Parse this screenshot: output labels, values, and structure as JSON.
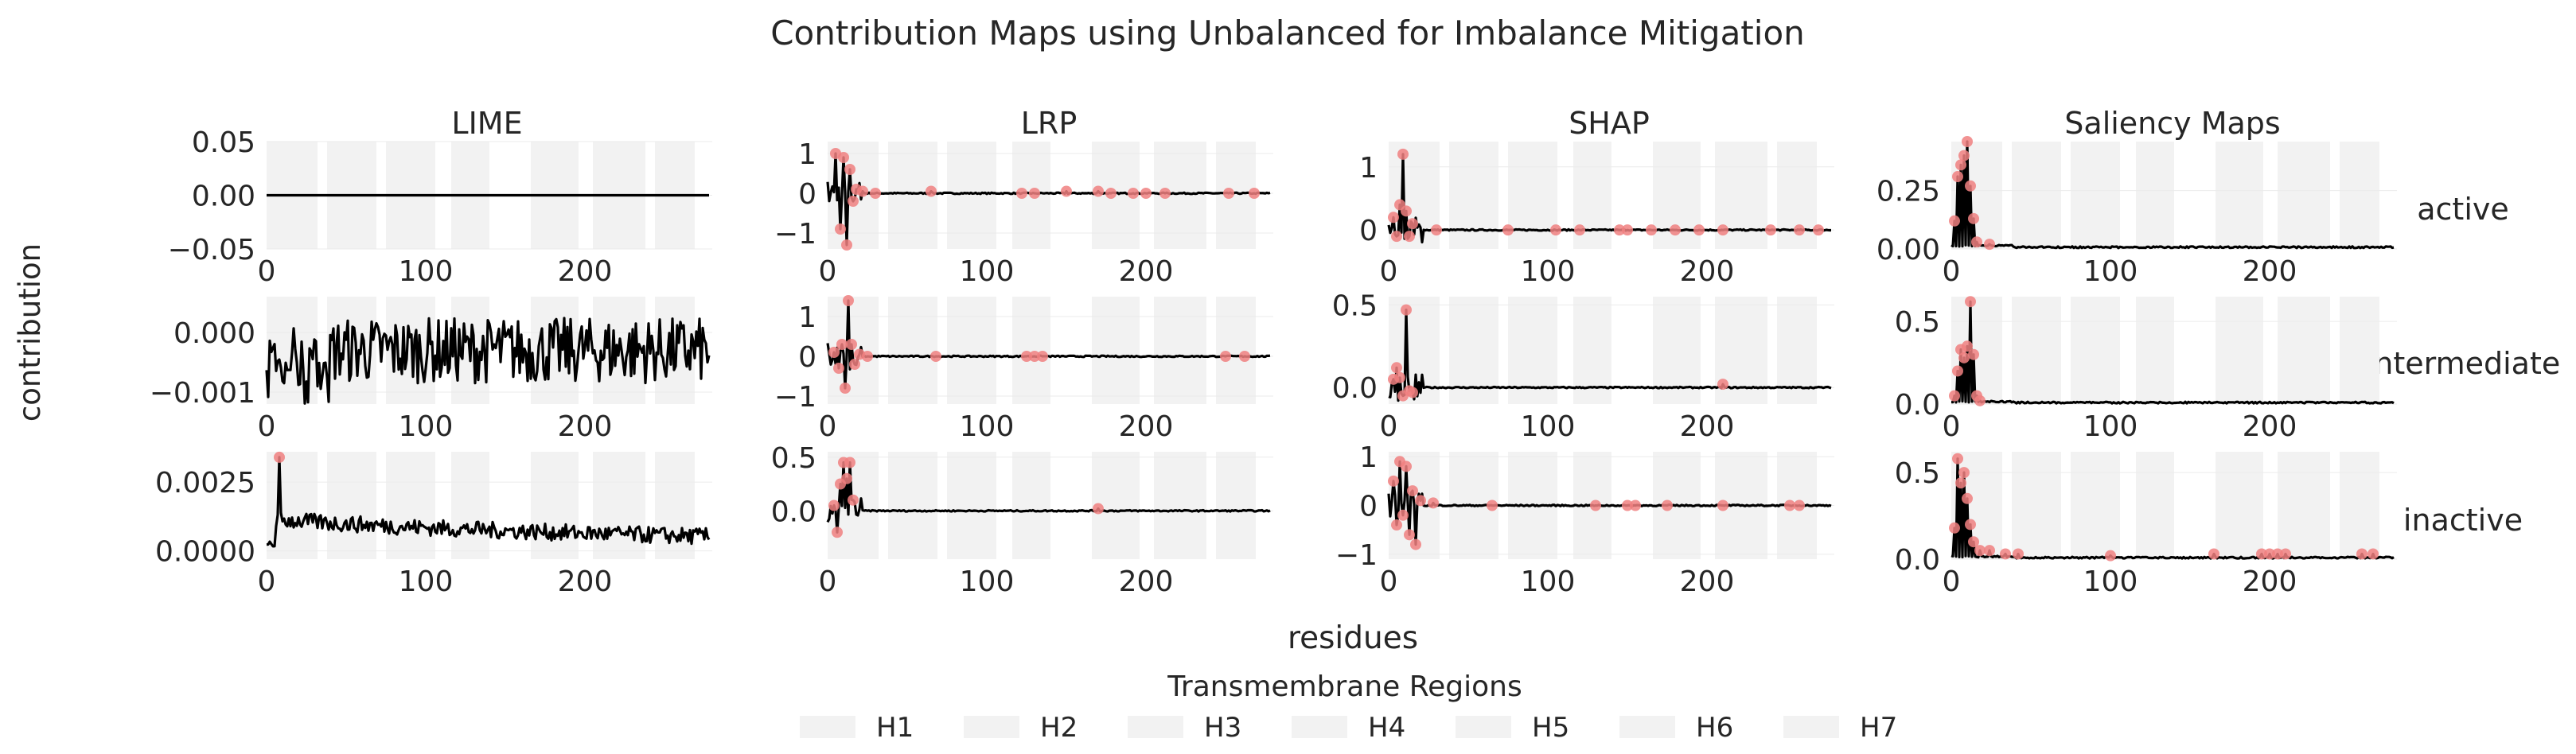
{
  "chart_data": {
    "type": "line",
    "title": "Contribution Maps using Unbalanced for Imbalance Mitigation",
    "xlabel": "residues",
    "ylabel": "contribution",
    "methods": [
      "LIME",
      "LRP",
      "SHAP",
      "Saliency Maps"
    ],
    "states": [
      "active",
      "intermediate",
      "inactive"
    ],
    "x_range": [
      0,
      280
    ],
    "x_ticks": [
      0,
      100,
      200
    ],
    "legend_title": "Transmembrane Regions",
    "regions": [
      {
        "name": "H1",
        "start": 0,
        "end": 32,
        "color": "#f2f2f2"
      },
      {
        "name": "H2",
        "start": 38,
        "end": 69,
        "color": "#f2f2f2"
      },
      {
        "name": "H3",
        "start": 75,
        "end": 106,
        "color": "#f2f2f2"
      },
      {
        "name": "H4",
        "start": 116,
        "end": 140,
        "color": "#f2f2f2"
      },
      {
        "name": "H5",
        "start": 166,
        "end": 196,
        "color": "#f2f2f2"
      },
      {
        "name": "H6",
        "start": 205,
        "end": 238,
        "color": "#f2f2f2"
      },
      {
        "name": "H7",
        "start": 244,
        "end": 269,
        "color": "#f2f2f2"
      }
    ],
    "line_color": "#000000",
    "highlight_color": "#f08080",
    "panels": [
      {
        "method": "LIME",
        "state": "active",
        "ylim": [
          -0.05,
          0.05
        ],
        "yticks": [
          "0.05",
          "0.00",
          "−0.05"
        ],
        "ytick_values": [
          0.05,
          0.0,
          -0.05
        ],
        "series": "flat",
        "peaks": []
      },
      {
        "method": "LRP",
        "state": "active",
        "ylim": [
          -1.4,
          1.3
        ],
        "yticks": [
          "1",
          "0",
          "−1"
        ],
        "ytick_values": [
          1,
          0,
          -1
        ],
        "series": "spiky",
        "peaks": [
          [
            5,
            1.0
          ],
          [
            8,
            -0.9
          ],
          [
            10,
            0.9
          ],
          [
            12,
            -1.3
          ],
          [
            14,
            0.6
          ],
          [
            16,
            -0.2
          ],
          [
            18,
            0.1
          ],
          [
            22,
            0.05
          ],
          [
            30,
            0.0
          ],
          [
            65,
            0.05
          ],
          [
            122,
            0.0
          ],
          [
            130,
            0.0
          ],
          [
            150,
            0.05
          ],
          [
            170,
            0.05
          ],
          [
            178,
            0.0
          ],
          [
            192,
            0.0
          ],
          [
            200,
            0.0
          ],
          [
            212,
            0.0
          ],
          [
            252,
            0.0
          ],
          [
            268,
            0.0
          ]
        ]
      },
      {
        "method": "SHAP",
        "state": "active",
        "ylim": [
          -0.3,
          1.4
        ],
        "yticks": [
          "1",
          "0"
        ],
        "ytick_values": [
          1,
          0
        ],
        "series": "spiky",
        "peaks": [
          [
            3,
            0.2
          ],
          [
            5,
            -0.1
          ],
          [
            7,
            0.4
          ],
          [
            9,
            1.2
          ],
          [
            11,
            0.3
          ],
          [
            13,
            -0.1
          ],
          [
            15,
            0.1
          ],
          [
            30,
            0.0
          ],
          [
            75,
            0.0
          ],
          [
            105,
            0.0
          ],
          [
            120,
            0.0
          ],
          [
            145,
            0.0
          ],
          [
            150,
            0.0
          ],
          [
            165,
            0.0
          ],
          [
            180,
            0.0
          ],
          [
            195,
            0.0
          ],
          [
            210,
            0.0
          ],
          [
            240,
            0.0
          ],
          [
            258,
            0.0
          ],
          [
            270,
            0.0
          ]
        ]
      },
      {
        "method": "Saliency Maps",
        "state": "active",
        "ylim": [
          0,
          0.46
        ],
        "yticks": [
          "0.25",
          "0.00"
        ],
        "ytick_values": [
          0.25,
          0.0
        ],
        "series": "positive",
        "peaks": [
          [
            2,
            0.12
          ],
          [
            4,
            0.31
          ],
          [
            6,
            0.36
          ],
          [
            8,
            0.4
          ],
          [
            10,
            0.46
          ],
          [
            12,
            0.27
          ],
          [
            14,
            0.13
          ],
          [
            16,
            0.03
          ],
          [
            24,
            0.02
          ]
        ]
      },
      {
        "method": "LIME",
        "state": "intermediate",
        "ylim": [
          -0.0012,
          0.0006
        ],
        "yticks": [
          "0.000",
          "−0.001"
        ],
        "ytick_values": [
          0.0,
          -0.001
        ],
        "series": "noise",
        "peaks": []
      },
      {
        "method": "LRP",
        "state": "intermediate",
        "ylim": [
          -1.2,
          1.5
        ],
        "yticks": [
          "1",
          "0",
          "−1"
        ],
        "ytick_values": [
          1,
          0,
          -1
        ],
        "series": "spiky",
        "peaks": [
          [
            4,
            0.1
          ],
          [
            7,
            -0.3
          ],
          [
            9,
            0.3
          ],
          [
            11,
            -0.8
          ],
          [
            13,
            1.4
          ],
          [
            15,
            0.3
          ],
          [
            17,
            -0.2
          ],
          [
            20,
            0.05
          ],
          [
            25,
            0.0
          ],
          [
            68,
            0.0
          ],
          [
            125,
            0.0
          ],
          [
            130,
            0.0
          ],
          [
            135,
            0.0
          ],
          [
            250,
            0.0
          ],
          [
            262,
            0.0
          ]
        ]
      },
      {
        "method": "SHAP",
        "state": "intermediate",
        "ylim": [
          -0.1,
          0.55
        ],
        "yticks": [
          "0.5",
          "0.0"
        ],
        "ytick_values": [
          0.5,
          0.0
        ],
        "series": "spiky",
        "peaks": [
          [
            3,
            0.05
          ],
          [
            5,
            0.12
          ],
          [
            7,
            0.06
          ],
          [
            9,
            -0.05
          ],
          [
            11,
            0.47
          ],
          [
            13,
            -0.02
          ],
          [
            15,
            -0.03
          ],
          [
            210,
            0.02
          ]
        ]
      },
      {
        "method": "Saliency Maps",
        "state": "intermediate",
        "ylim": [
          0,
          0.65
        ],
        "yticks": [
          "0.5",
          "0.0"
        ],
        "ytick_values": [
          0.5,
          0.0
        ],
        "series": "positive",
        "peaks": [
          [
            2,
            0.05
          ],
          [
            4,
            0.2
          ],
          [
            6,
            0.33
          ],
          [
            8,
            0.28
          ],
          [
            10,
            0.35
          ],
          [
            12,
            0.62
          ],
          [
            14,
            0.3
          ],
          [
            16,
            0.05
          ],
          [
            18,
            0.02
          ]
        ]
      },
      {
        "method": "LIME",
        "state": "inactive",
        "ylim": [
          -0.0003,
          0.0036
        ],
        "yticks": [
          "0.0025",
          "0.0000"
        ],
        "ytick_values": [
          0.0025,
          0.0
        ],
        "series": "decay",
        "peaks": [
          [
            8,
            0.0034
          ]
        ]
      },
      {
        "method": "LRP",
        "state": "inactive",
        "ylim": [
          -0.45,
          0.55
        ],
        "yticks": [
          "0.5",
          "0.0"
        ],
        "ytick_values": [
          0.5,
          0.0
        ],
        "series": "spiky",
        "peaks": [
          [
            4,
            0.05
          ],
          [
            6,
            -0.2
          ],
          [
            8,
            0.25
          ],
          [
            10,
            0.45
          ],
          [
            12,
            0.3
          ],
          [
            14,
            0.45
          ],
          [
            16,
            0.1
          ],
          [
            170,
            0.02
          ]
        ]
      },
      {
        "method": "SHAP",
        "state": "inactive",
        "ylim": [
          -1.1,
          1.1
        ],
        "yticks": [
          "1",
          "0",
          "−1"
        ],
        "ytick_values": [
          1,
          0,
          -1
        ],
        "series": "spiky",
        "peaks": [
          [
            3,
            0.5
          ],
          [
            5,
            -0.4
          ],
          [
            7,
            0.9
          ],
          [
            9,
            -0.2
          ],
          [
            11,
            0.8
          ],
          [
            13,
            -0.6
          ],
          [
            15,
            0.3
          ],
          [
            17,
            -0.8
          ],
          [
            20,
            0.1
          ],
          [
            28,
            0.05
          ],
          [
            65,
            0.0
          ],
          [
            130,
            0.0
          ],
          [
            150,
            0.0
          ],
          [
            155,
            0.0
          ],
          [
            175,
            0.0
          ],
          [
            210,
            0.0
          ],
          [
            252,
            0.0
          ],
          [
            258,
            0.0
          ]
        ]
      },
      {
        "method": "Saliency Maps",
        "state": "inactive",
        "ylim": [
          0,
          0.62
        ],
        "yticks": [
          "0.5",
          "0.0"
        ],
        "ytick_values": [
          0.5,
          0.0
        ],
        "series": "positive",
        "peaks": [
          [
            2,
            0.18
          ],
          [
            4,
            0.58
          ],
          [
            6,
            0.44
          ],
          [
            8,
            0.5
          ],
          [
            10,
            0.35
          ],
          [
            12,
            0.2
          ],
          [
            14,
            0.1
          ],
          [
            18,
            0.05
          ],
          [
            24,
            0.05
          ],
          [
            34,
            0.03
          ],
          [
            42,
            0.03
          ],
          [
            100,
            0.02
          ],
          [
            165,
            0.03
          ],
          [
            195,
            0.03
          ],
          [
            200,
            0.03
          ],
          [
            205,
            0.03
          ],
          [
            210,
            0.03
          ],
          [
            258,
            0.03
          ],
          [
            265,
            0.03
          ]
        ]
      }
    ]
  }
}
